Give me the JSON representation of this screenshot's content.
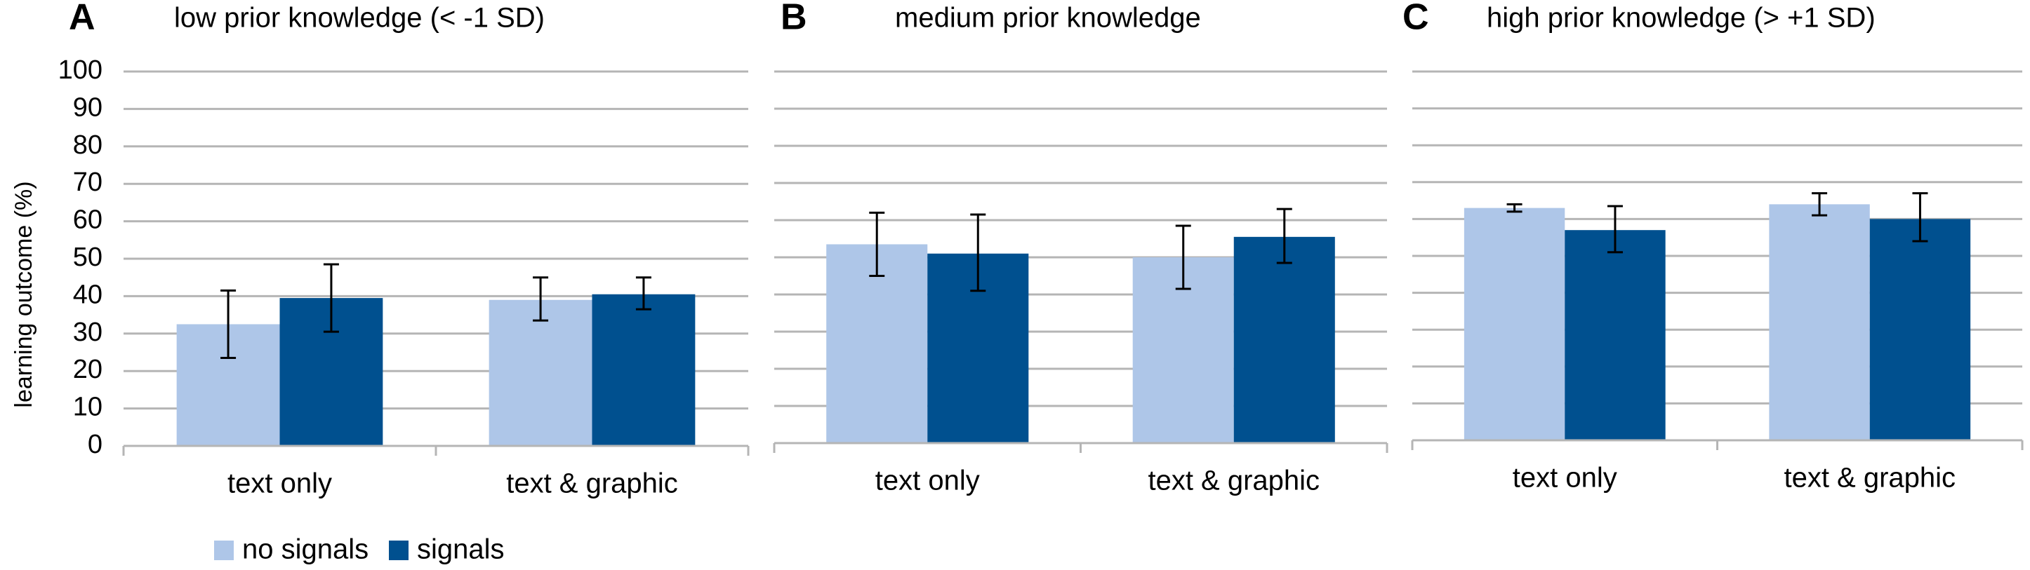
{
  "chart_data": {
    "type": "bar",
    "ylabel": "learning outcome (%)",
    "ylim": [
      0,
      100
    ],
    "yticks": [
      0,
      10,
      20,
      30,
      40,
      50,
      60,
      70,
      80,
      90,
      100
    ],
    "grid": true,
    "categories": [
      "text only",
      "text & graphic"
    ],
    "legend": {
      "placement": "bottom-left",
      "entries": [
        {
          "name": "no signals",
          "color": "#aec6e8"
        },
        {
          "name": "signals",
          "color": "#00508f"
        }
      ]
    },
    "panels": [
      {
        "letter": "A",
        "title": "low prior knowledge (< -1 SD)",
        "series": [
          {
            "name": "no signals",
            "values": [
              32.5,
              39
            ],
            "error_low": [
              23.5,
              33.5
            ],
            "error_high": [
              41.5,
              45
            ]
          },
          {
            "name": "signals",
            "values": [
              39.5,
              40.5
            ],
            "error_low": [
              30.5,
              36.5
            ],
            "error_high": [
              48.5,
              45
            ]
          }
        ]
      },
      {
        "letter": "B",
        "title": "medium prior knowledge",
        "series": [
          {
            "name": "no signals",
            "values": [
              53.5,
              50
            ],
            "error_low": [
              45,
              41.5
            ],
            "error_high": [
              62,
              58.5
            ]
          },
          {
            "name": "signals",
            "values": [
              51,
              55.5
            ],
            "error_low": [
              41,
              48.5
            ],
            "error_high": [
              61.5,
              63
            ]
          }
        ]
      },
      {
        "letter": "C",
        "title": "high prior knowledge (> +1 SD)",
        "series": [
          {
            "name": "no signals",
            "values": [
              63,
              64
            ],
            "error_low": [
              62,
              61
            ],
            "error_high": [
              64,
              67
            ]
          },
          {
            "name": "signals",
            "values": [
              57,
              60
            ],
            "error_low": [
              51,
              54
            ],
            "error_high": [
              63.5,
              67
            ]
          }
        ]
      }
    ]
  }
}
